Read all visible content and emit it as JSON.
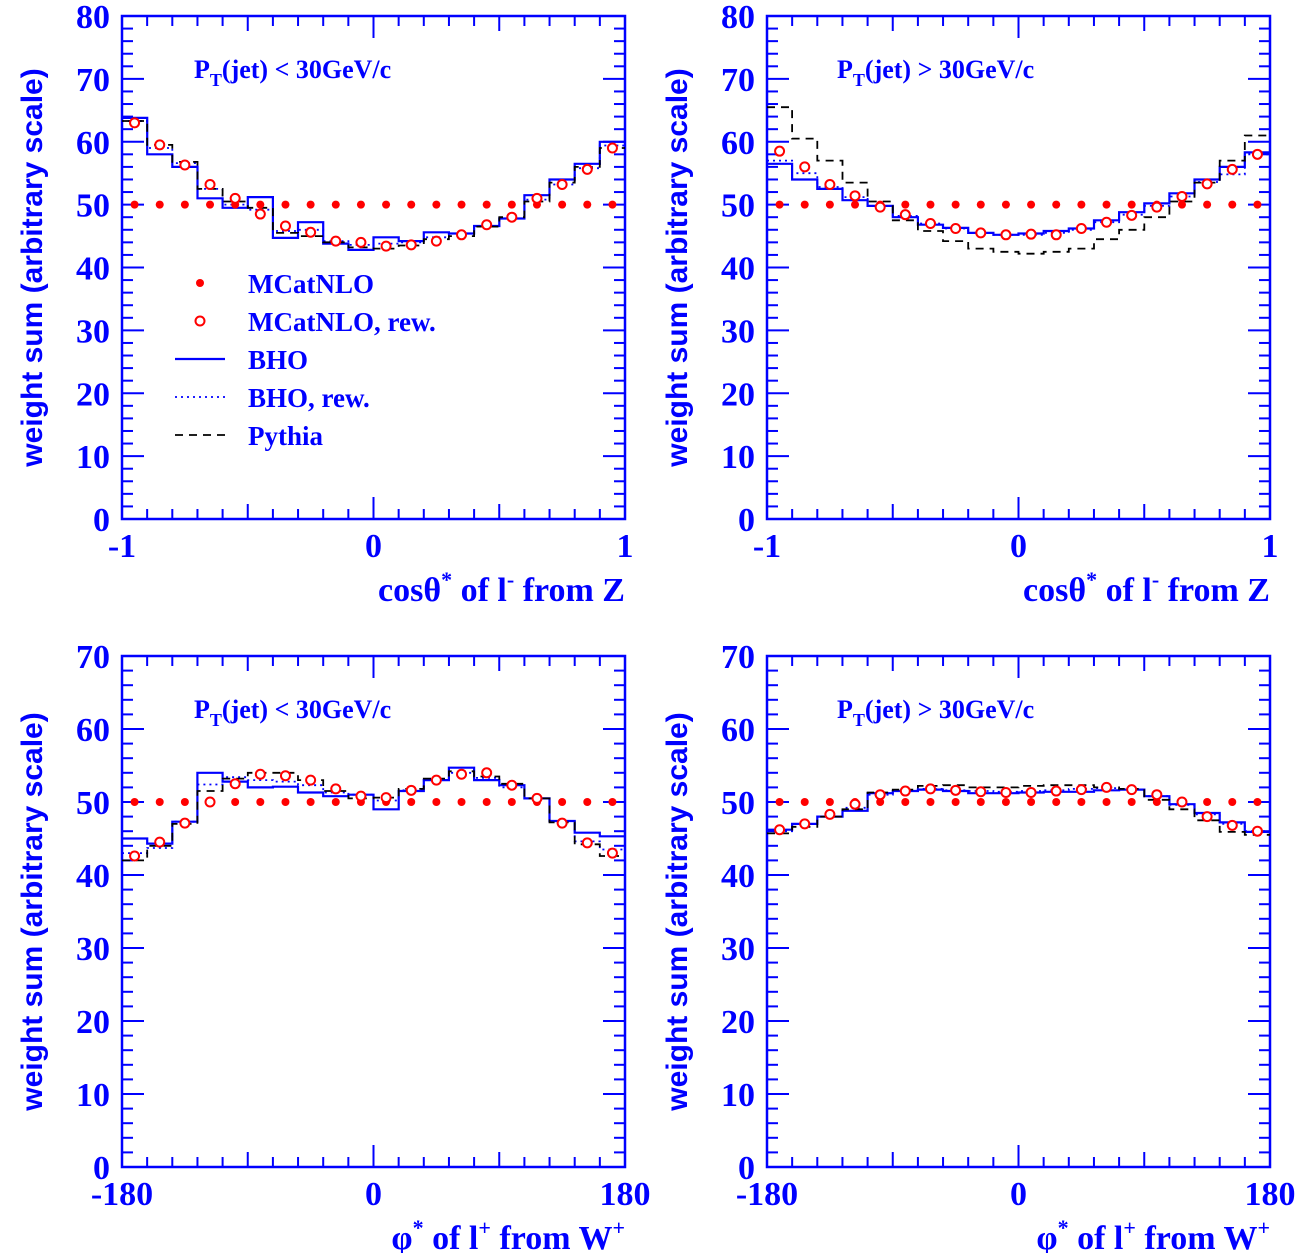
{
  "colors": {
    "axis": "#0000ff",
    "bho": "#0000ff",
    "mcatnlo": "#ff0000",
    "pythia": "#000000"
  },
  "legend": [
    {
      "key": "mc",
      "label": "MCatNLO"
    },
    {
      "key": "mcrew",
      "label": "MCatNLO, rew."
    },
    {
      "key": "bho",
      "label": "BHO"
    },
    {
      "key": "bhorew",
      "label": "BHO, rew."
    },
    {
      "key": "py",
      "label": "Pythia"
    }
  ],
  "chart_data": [
    {
      "type": "line",
      "annotation": {
        "main": "P",
        "sub": "T",
        "rest": "(jet) < 30GeV/c"
      },
      "xlabel": {
        "main": "cosθ",
        "sup": "*",
        "mid": " of l",
        "sup2": "-",
        "end": " from Z"
      },
      "ylabel": "weight sum (arbitrary scale)",
      "xlim": [
        -1,
        1
      ],
      "ylim": [
        0,
        80
      ],
      "xticks": [
        "-1",
        "0",
        "1"
      ],
      "yticks": [
        "0",
        "10",
        "20",
        "30",
        "40",
        "50",
        "60",
        "70",
        "80"
      ],
      "x": [
        -0.95,
        -0.85,
        -0.75,
        -0.65,
        -0.55,
        -0.45,
        -0.35,
        -0.25,
        -0.15,
        -0.05,
        0.05,
        0.15,
        0.25,
        0.35,
        0.45,
        0.55,
        0.65,
        0.75,
        0.85,
        0.95
      ],
      "series": [
        {
          "name": "MCatNLO",
          "key": "mc",
          "values": [
            50,
            50,
            50,
            50,
            50,
            50,
            50,
            50,
            50,
            50,
            50,
            50,
            50,
            50,
            50,
            50,
            50,
            50,
            50,
            50
          ]
        },
        {
          "name": "MCatNLO, rew.",
          "key": "mcrew",
          "values": [
            63.0,
            59.5,
            56.3,
            53.2,
            51.0,
            48.5,
            46.6,
            45.6,
            44.2,
            44.0,
            43.4,
            43.6,
            44.2,
            45.2,
            46.8,
            48.0,
            51.0,
            53.2,
            55.6,
            59.0
          ]
        },
        {
          "name": "BHO",
          "key": "bho",
          "values": [
            63.8,
            58.0,
            56.0,
            51.0,
            49.5,
            51.2,
            44.7,
            47.2,
            43.8,
            42.8,
            44.8,
            44.2,
            45.6,
            45.4,
            46.6,
            47.8,
            51.5,
            54.0,
            56.5,
            60.0
          ]
        },
        {
          "name": "BHO, rew.",
          "key": "bhorew",
          "values": [
            63.3,
            59.0,
            56.6,
            52.5,
            50.0,
            49.2,
            45.8,
            46.0,
            44.2,
            43.6,
            43.8,
            44.0,
            44.8,
            45.4,
            46.6,
            47.8,
            50.8,
            53.2,
            55.8,
            59.4
          ]
        },
        {
          "name": "Pythia",
          "key": "py",
          "values": [
            63.3,
            59.5,
            56.8,
            52.5,
            50.5,
            49.5,
            45.5,
            45.0,
            44.0,
            43.2,
            43.0,
            43.5,
            44.5,
            45.0,
            46.5,
            48.0,
            50.5,
            53.5,
            56.0,
            59.0
          ]
        }
      ]
    },
    {
      "type": "line",
      "annotation": {
        "main": "P",
        "sub": "T",
        "rest": "(jet) > 30GeV/c"
      },
      "xlabel": {
        "main": "cosθ",
        "sup": "*",
        "mid": " of l",
        "sup2": "-",
        "end": " from Z"
      },
      "ylabel": "weight sum (arbitrary scale)",
      "xlim": [
        -1,
        1
      ],
      "ylim": [
        0,
        80
      ],
      "xticks": [
        "-1",
        "0",
        "1"
      ],
      "yticks": [
        "0",
        "10",
        "20",
        "30",
        "40",
        "50",
        "60",
        "70",
        "80"
      ],
      "x": [
        -0.95,
        -0.85,
        -0.75,
        -0.65,
        -0.55,
        -0.45,
        -0.35,
        -0.25,
        -0.15,
        -0.05,
        0.05,
        0.15,
        0.25,
        0.35,
        0.45,
        0.55,
        0.65,
        0.75,
        0.85,
        0.95
      ],
      "series": [
        {
          "name": "MCatNLO",
          "key": "mc",
          "values": [
            50,
            50,
            50,
            50,
            50,
            50,
            50,
            50,
            50,
            50,
            50,
            50,
            50,
            50,
            50,
            50,
            50,
            50,
            50,
            50
          ]
        },
        {
          "name": "MCatNLO, rew.",
          "key": "mcrew",
          "values": [
            58.5,
            56.0,
            53.2,
            51.4,
            49.6,
            48.4,
            47.0,
            46.2,
            45.5,
            45.2,
            45.3,
            45.2,
            46.2,
            47.2,
            48.3,
            49.6,
            51.3,
            53.3,
            55.6,
            58.0
          ]
        },
        {
          "name": "BHO",
          "key": "bho",
          "values": [
            56.5,
            54.0,
            52.5,
            50.7,
            49.8,
            48.0,
            46.8,
            46.3,
            45.5,
            45.2,
            45.4,
            45.8,
            46.2,
            47.5,
            48.8,
            50.2,
            51.8,
            54.0,
            56.0,
            58.3
          ]
        },
        {
          "name": "BHO, rew.",
          "key": "bhorew",
          "values": [
            57.0,
            55.0,
            52.8,
            51.2,
            49.8,
            48.2,
            47.0,
            46.2,
            45.5,
            45.2,
            45.2,
            45.5,
            46.0,
            47.2,
            48.4,
            49.8,
            51.3,
            53.6,
            54.8,
            58.0
          ]
        },
        {
          "name": "Pythia",
          "key": "py",
          "values": [
            65.5,
            60.5,
            57.0,
            53.5,
            50.5,
            47.5,
            45.8,
            44.2,
            43.0,
            42.5,
            42.2,
            42.5,
            43.0,
            44.5,
            46.0,
            48.0,
            50.5,
            53.5,
            57.0,
            61.0
          ]
        }
      ]
    },
    {
      "type": "line",
      "annotation": {
        "main": "P",
        "sub": "T",
        "rest": "(jet) < 30GeV/c"
      },
      "xlabel": {
        "main": "φ",
        "sup": "*",
        "mid": " of l",
        "sup2": "+",
        "end": " from W",
        "sup3": "+"
      },
      "ylabel": "weight sum (arbitrary scale)",
      "xlim": [
        -180,
        180
      ],
      "ylim": [
        0,
        70
      ],
      "xticks": [
        "-180",
        "0",
        "180"
      ],
      "yticks": [
        "0",
        "10",
        "20",
        "30",
        "40",
        "50",
        "60",
        "70"
      ],
      "x": [
        -171,
        -153,
        -135,
        -117,
        -99,
        -81,
        -63,
        -45,
        -27,
        -9,
        9,
        27,
        45,
        63,
        81,
        99,
        117,
        135,
        153,
        171
      ],
      "series": [
        {
          "name": "MCatNLO",
          "key": "mc",
          "values": [
            50,
            50,
            50,
            50,
            50,
            50,
            50,
            50,
            50,
            50,
            50,
            50,
            50,
            50,
            50,
            50,
            50,
            50,
            50,
            50
          ]
        },
        {
          "name": "MCatNLO, rew.",
          "key": "mcrew",
          "values": [
            42.6,
            44.5,
            47.1,
            50.0,
            52.5,
            53.8,
            53.6,
            53.0,
            51.8,
            50.8,
            50.6,
            51.6,
            53.0,
            53.8,
            54.0,
            52.3,
            50.5,
            47.1,
            44.4,
            43.0
          ]
        },
        {
          "name": "BHO",
          "key": "bho",
          "values": [
            45.0,
            44.3,
            47.3,
            54.0,
            52.8,
            52.0,
            52.1,
            51.3,
            50.8,
            51.0,
            49.0,
            51.5,
            53.0,
            54.7,
            53.0,
            52.3,
            50.5,
            47.4,
            45.8,
            45.3
          ]
        },
        {
          "name": "BHO, rew.",
          "key": "bhorew",
          "values": [
            43.0,
            43.7,
            47.3,
            52.4,
            53.4,
            53.0,
            52.8,
            52.3,
            51.3,
            51.0,
            50.2,
            51.6,
            53.0,
            54.0,
            53.3,
            52.0,
            50.5,
            47.4,
            44.6,
            43.5
          ]
        },
        {
          "name": "Pythia",
          "key": "py",
          "values": [
            42.0,
            44.0,
            47.0,
            51.5,
            53.2,
            54.0,
            54.0,
            53.0,
            51.5,
            50.5,
            50.6,
            51.8,
            53.2,
            54.2,
            53.5,
            52.5,
            50.5,
            47.2,
            44.2,
            42.6
          ]
        }
      ]
    },
    {
      "type": "line",
      "annotation": {
        "main": "P",
        "sub": "T",
        "rest": "(jet) > 30GeV/c"
      },
      "xlabel": {
        "main": "φ",
        "sup": "*",
        "mid": " of l",
        "sup2": "+",
        "end": " from W",
        "sup3": "+"
      },
      "ylabel": "weight sum (arbitrary scale)",
      "xlim": [
        -180,
        180
      ],
      "ylim": [
        0,
        70
      ],
      "xticks": [
        "-180",
        "0",
        "180"
      ],
      "yticks": [
        "0",
        "10",
        "20",
        "30",
        "40",
        "50",
        "60",
        "70"
      ],
      "x": [
        -171,
        -153,
        -135,
        -117,
        -99,
        -81,
        -63,
        -45,
        -27,
        -9,
        9,
        27,
        45,
        63,
        81,
        99,
        117,
        135,
        153,
        171
      ],
      "series": [
        {
          "name": "MCatNLO",
          "key": "mc",
          "values": [
            50,
            50,
            50,
            50,
            50,
            50,
            50,
            50,
            50,
            50,
            50,
            50,
            50,
            50,
            50,
            50,
            50,
            50,
            50,
            50
          ]
        },
        {
          "name": "MCatNLO, rew.",
          "key": "mcrew",
          "values": [
            46.2,
            47.0,
            48.3,
            49.7,
            51.0,
            51.5,
            51.8,
            51.6,
            51.4,
            51.3,
            51.3,
            51.5,
            51.7,
            52.0,
            51.7,
            51.0,
            50.0,
            48.0,
            46.8,
            46.0
          ]
        },
        {
          "name": "BHO",
          "key": "bho",
          "values": [
            46.2,
            47.0,
            48.0,
            48.8,
            51.2,
            51.5,
            51.7,
            51.5,
            51.2,
            51.2,
            51.3,
            51.4,
            51.4,
            51.6,
            51.7,
            50.8,
            49.7,
            48.5,
            47.2,
            45.9
          ]
        },
        {
          "name": "BHO, rew.",
          "key": "bhorew",
          "values": [
            46.0,
            47.0,
            48.0,
            49.2,
            51.0,
            51.5,
            51.8,
            51.6,
            51.5,
            51.4,
            51.5,
            51.6,
            51.8,
            51.9,
            51.7,
            50.8,
            49.6,
            48.3,
            47.0,
            46.0
          ]
        },
        {
          "name": "Pythia",
          "key": "py",
          "values": [
            45.7,
            46.6,
            48.0,
            49.0,
            51.3,
            51.7,
            52.2,
            52.3,
            52.0,
            52.0,
            52.2,
            52.3,
            52.3,
            52.0,
            51.8,
            50.3,
            49.0,
            47.5,
            45.9,
            45.5
          ]
        }
      ]
    }
  ]
}
